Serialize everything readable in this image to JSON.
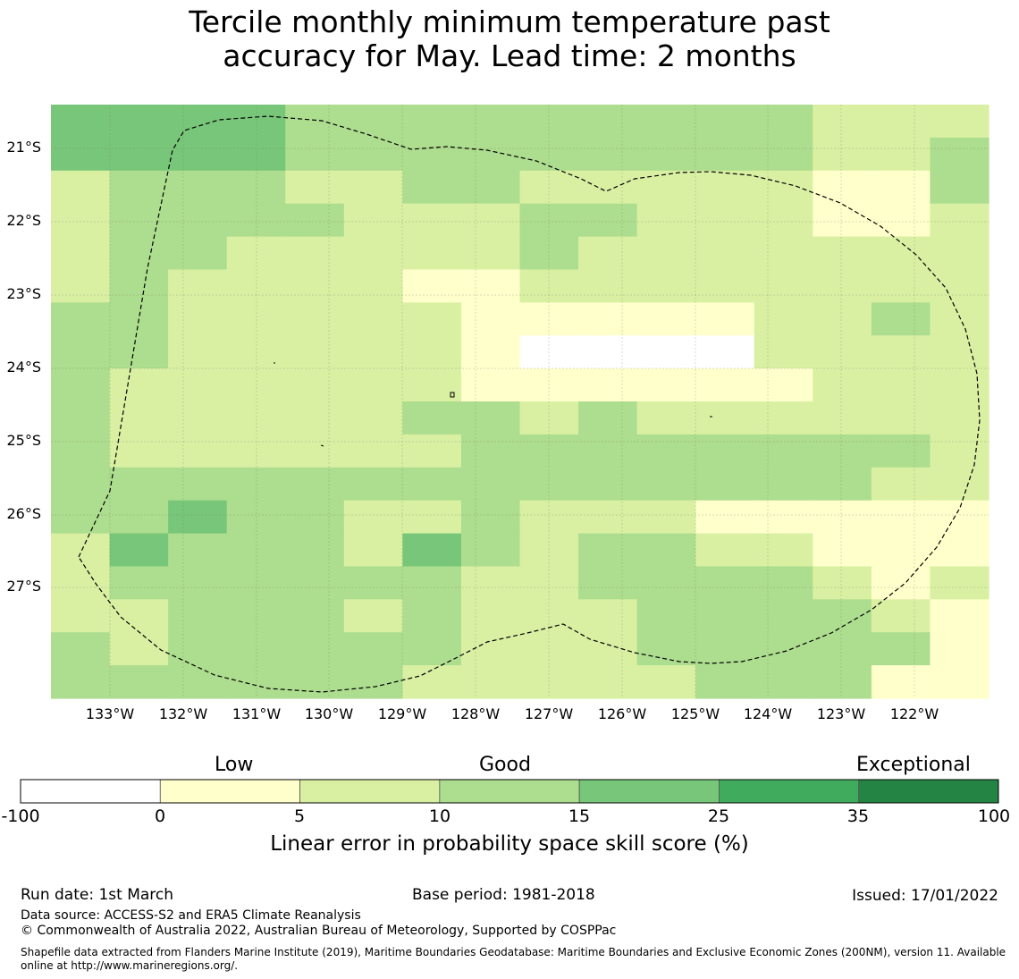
{
  "title": {
    "line1": "Tercile monthly minimum temperature past",
    "line2": "accuracy for May. Lead time: 2 months"
  },
  "map": {
    "lat_labels": [
      "21°S",
      "22°S",
      "23°S",
      "24°S",
      "25°S",
      "26°S",
      "27°S"
    ],
    "lon_labels": [
      "133°W",
      "132°W",
      "131°W",
      "130°W",
      "129°W",
      "128°W",
      "127°W",
      "126°W",
      "125°W",
      "124°W",
      "123°W",
      "122°W"
    ],
    "grid_rows": [
      "3333222222222111",
      "3333222222222112",
      "1222112211111002",
      "1222211122111001",
      "1221111121111111",
      "1211110011111111",
      "2211111000001121",
      "2211111000001111",
      "2111111000000111",
      "2111112212111111",
      "2111111222222221",
      "2222222222222211",
      "2232211211100000",
      "1322213212211000",
      "1222222112222101",
      "1122212111222210",
      "2122222111222220",
      "2222221111122200"
    ],
    "grid_blank_cells": [
      [
        7,
        8
      ],
      [
        7,
        9
      ],
      [
        7,
        10
      ],
      [
        7,
        11
      ]
    ],
    "legend_colors": {
      "below_0": "#ffffff",
      "0_to_5": "#ffffcc",
      "5_to_10": "#d9f0a3",
      "10_to_15": "#addd8e",
      "15_to_25": "#78c679",
      "25_to_35": "#41ab5d",
      "35_to_100": "#238443"
    }
  },
  "colorbar": {
    "category_low": "Low",
    "category_good": "Good",
    "category_exceptional": "Exceptional",
    "bounds": [
      -100,
      0,
      5,
      10,
      15,
      25,
      35,
      100
    ],
    "tick_labels": [
      "-100",
      "0",
      "5",
      "10",
      "15",
      "25",
      "35",
      "100"
    ],
    "colors": [
      "#ffffff",
      "#ffffcc",
      "#d9f0a3",
      "#addd8e",
      "#78c679",
      "#41ab5d",
      "#238443"
    ],
    "label": "Linear error in probability space skill score (%)"
  },
  "footer": {
    "run_date": "Run date: 1st March",
    "base_period": "Base period: 1981-2018",
    "issued": "Issued: 17/01/2022",
    "data_source": "Data source: ACCESS-S2 and ERA5 Climate Reanalysis",
    "copyright": "© Commonwealth of Australia 2022, Australian Bureau of Meteorology, Supported by COSPPac",
    "shapefile": "Shapefile data extracted from Flanders Marine Institute (2019), Maritime Boundaries Geodatabase: Maritime Boundaries and Exclusive Economic Zones (200NM), version 11. Available online at http://www.marineregions.org/."
  }
}
